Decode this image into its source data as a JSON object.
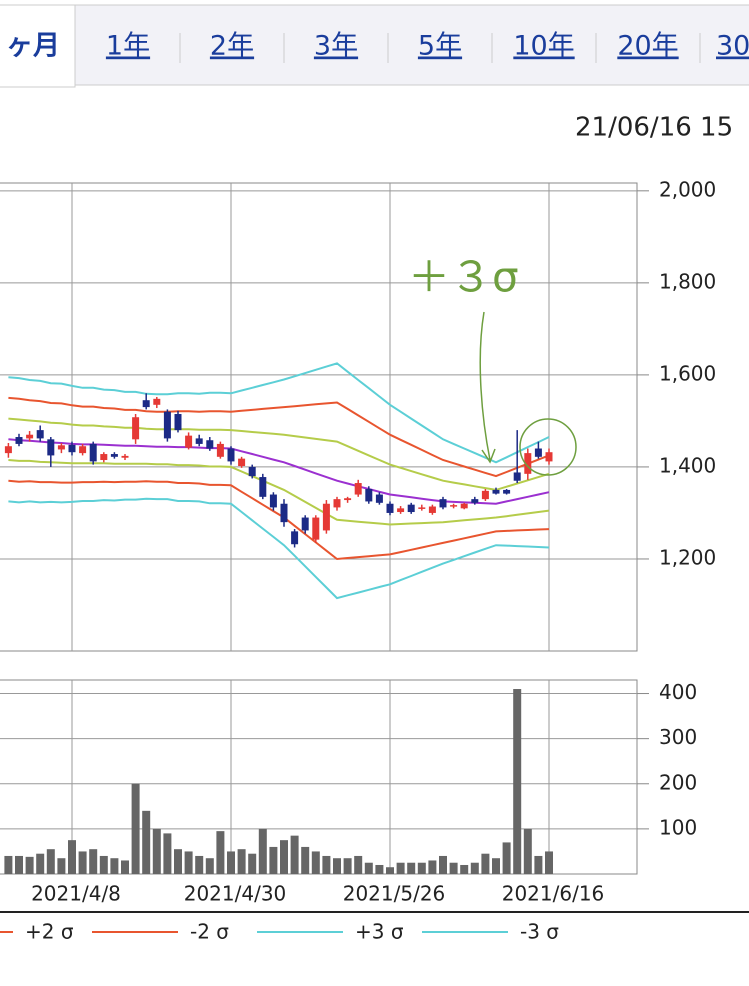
{
  "tabs": [
    "ヶ月",
    "1年",
    "2年",
    "3年",
    "5年",
    "10年",
    "20年",
    "30"
  ],
  "timestamp": "21/06/16 15",
  "chart_data": [
    {
      "type": "candlestick",
      "categories": [
        null,
        null,
        null,
        null,
        null,
        null,
        "2021/4/8",
        null,
        null,
        null,
        null,
        null,
        null,
        null,
        null,
        null,
        null,
        null,
        null,
        null,
        null,
        "2021/4/30",
        null,
        null,
        null,
        null,
        null,
        null,
        null,
        null,
        null,
        null,
        null,
        null,
        null,
        null,
        "2021/5/26",
        null,
        null,
        null,
        null,
        null,
        null,
        null,
        null,
        null,
        null,
        null,
        null,
        null,
        null,
        "2021/6/16"
      ],
      "open": [
        1430,
        1465,
        1462,
        1480,
        1460,
        1438,
        1448,
        1430,
        1450,
        1415,
        1428,
        1420,
        1460,
        1545,
        1535,
        1520,
        1515,
        1442,
        1462,
        1458,
        1422,
        1440,
        1402,
        1400,
        1378,
        1340,
        1320,
        1260,
        1290,
        1242,
        1262,
        1312,
        1328,
        1340,
        1352,
        1340,
        1320,
        1302,
        1318,
        1310,
        1300,
        1330,
        1314,
        1310,
        1330,
        1330,
        1350,
        1350,
        1388,
        1385,
        1440,
        1412
      ],
      "high": [
        1452,
        1472,
        1478,
        1490,
        1465,
        1452,
        1455,
        1450,
        1455,
        1432,
        1432,
        1428,
        1515,
        1560,
        1552,
        1525,
        1522,
        1475,
        1470,
        1465,
        1455,
        1445,
        1422,
        1405,
        1385,
        1345,
        1330,
        1265,
        1295,
        1295,
        1328,
        1335,
        1335,
        1372,
        1358,
        1345,
        1325,
        1315,
        1322,
        1318,
        1318,
        1335,
        1320,
        1322,
        1335,
        1352,
        1355,
        1352,
        1480,
        1440,
        1455,
        1440
      ],
      "low": [
        1420,
        1445,
        1455,
        1455,
        1400,
        1430,
        1425,
        1425,
        1405,
        1410,
        1418,
        1415,
        1450,
        1525,
        1528,
        1455,
        1475,
        1438,
        1445,
        1435,
        1418,
        1405,
        1398,
        1375,
        1330,
        1305,
        1270,
        1225,
        1255,
        1235,
        1255,
        1305,
        1322,
        1335,
        1320,
        1318,
        1295,
        1298,
        1298,
        1305,
        1296,
        1308,
        1310,
        1308,
        1318,
        1326,
        1340,
        1340,
        1365,
        1372,
        1418,
        1405
      ],
      "close": [
        1445,
        1450,
        1470,
        1462,
        1425,
        1447,
        1432,
        1445,
        1412,
        1428,
        1422,
        1424,
        1508,
        1530,
        1548,
        1462,
        1480,
        1468,
        1450,
        1440,
        1450,
        1412,
        1418,
        1380,
        1335,
        1312,
        1280,
        1232,
        1262,
        1290,
        1320,
        1330,
        1332,
        1365,
        1325,
        1322,
        1300,
        1310,
        1302,
        1312,
        1314,
        1312,
        1317,
        1320,
        1322,
        1348,
        1342,
        1342,
        1370,
        1430,
        1422,
        1432
      ],
      "up_color": "#e53935",
      "down_color": "#1c2a86",
      "series": [
        {
          "color": "#9b30d0",
          "values": [
            1460,
            1458,
            1457,
            1455,
            1453,
            1452,
            1450,
            1449,
            1449,
            1448,
            1447,
            1446,
            1446,
            1445,
            1444,
            1444,
            1443,
            1443,
            1442,
            1441,
            1441,
            1440,
            1434,
            1428,
            1422,
            1416,
            1410,
            1402,
            1394,
            1386,
            1378,
            1370,
            1364,
            1358,
            1352,
            1346,
            1340,
            1337,
            1334,
            1331,
            1328,
            1325,
            1324,
            1323,
            1322,
            1321,
            1320,
            1325,
            1330,
            1335,
            1340,
            1345
          ]
        },
        {
          "color": "#b5cc4a",
          "values": [
            1505,
            1503,
            1501,
            1499,
            1496,
            1495,
            1492,
            1490,
            1490,
            1488,
            1487,
            1485,
            1485,
            1483,
            1482,
            1482,
            1482,
            1482,
            1481,
            1481,
            1481,
            1480,
            1478,
            1476,
            1474,
            1472,
            1470,
            1467,
            1464,
            1461,
            1458,
            1455,
            1445,
            1435,
            1425,
            1415,
            1405,
            1398,
            1391,
            1384,
            1377,
            1370,
            1366,
            1362,
            1358,
            1354,
            1350,
            1357,
            1364,
            1371,
            1378,
            1385
          ]
        },
        {
          "color": "#b5cc4a",
          "values": [
            1415,
            1413,
            1413,
            1411,
            1410,
            1409,
            1408,
            1408,
            1408,
            1408,
            1407,
            1407,
            1407,
            1407,
            1406,
            1406,
            1404,
            1404,
            1403,
            1401,
            1401,
            1400,
            1390,
            1380,
            1370,
            1360,
            1350,
            1337,
            1324,
            1311,
            1298,
            1285,
            1283,
            1281,
            1279,
            1277,
            1275,
            1276,
            1277,
            1278,
            1279,
            1280,
            1282,
            1284,
            1286,
            1288,
            1290,
            1293,
            1296,
            1299,
            1302,
            1305
          ]
        },
        {
          "name": "+2 σ",
          "color": "#e8552f",
          "values": [
            1550,
            1548,
            1545,
            1543,
            1539,
            1538,
            1534,
            1531,
            1531,
            1528,
            1527,
            1524,
            1524,
            1521,
            1520,
            1520,
            1521,
            1521,
            1520,
            1521,
            1521,
            1520,
            1522,
            1524,
            1526,
            1528,
            1530,
            1532,
            1534,
            1536,
            1538,
            1540,
            1526,
            1512,
            1498,
            1484,
            1470,
            1459,
            1448,
            1437,
            1426,
            1415,
            1408,
            1401,
            1394,
            1387,
            1380,
            1389,
            1398,
            1407,
            1416,
            1425
          ]
        },
        {
          "name": "-2 σ",
          "color": "#e8552f",
          "values": [
            1370,
            1368,
            1369,
            1367,
            1367,
            1366,
            1366,
            1367,
            1367,
            1368,
            1367,
            1368,
            1368,
            1369,
            1368,
            1368,
            1365,
            1365,
            1364,
            1361,
            1361,
            1360,
            1346,
            1332,
            1318,
            1304,
            1290,
            1272,
            1254,
            1236,
            1218,
            1200,
            1202,
            1204,
            1206,
            1208,
            1210,
            1215,
            1220,
            1225,
            1230,
            1235,
            1240,
            1245,
            1250,
            1255,
            1260,
            1261,
            1262,
            1263,
            1264,
            1265
          ]
        },
        {
          "name": "+3 σ",
          "color": "#5ccfd6",
          "values": [
            1595,
            1593,
            1589,
            1587,
            1582,
            1581,
            1576,
            1572,
            1572,
            1568,
            1567,
            1563,
            1563,
            1559,
            1558,
            1558,
            1560,
            1560,
            1559,
            1561,
            1561,
            1560,
            1566,
            1572,
            1578,
            1584,
            1590,
            1597,
            1604,
            1611,
            1618,
            1625,
            1607,
            1589,
            1571,
            1553,
            1535,
            1520,
            1505,
            1490,
            1475,
            1460,
            1450,
            1440,
            1430,
            1420,
            1410,
            1421,
            1432,
            1443,
            1454,
            1465
          ]
        },
        {
          "name": "-3 σ",
          "color": "#5ccfd6",
          "values": [
            1325,
            1323,
            1325,
            1323,
            1324,
            1323,
            1324,
            1326,
            1326,
            1328,
            1327,
            1329,
            1329,
            1331,
            1330,
            1330,
            1326,
            1326,
            1325,
            1321,
            1321,
            1320,
            1302,
            1284,
            1266,
            1248,
            1230,
            1207,
            1184,
            1161,
            1138,
            1115,
            1121,
            1127,
            1133,
            1139,
            1145,
            1154,
            1163,
            1172,
            1181,
            1190,
            1198,
            1206,
            1214,
            1222,
            1230,
            1229,
            1228,
            1227,
            1226,
            1225
          ]
        }
      ],
      "ylim": [
        1000,
        2017
      ],
      "yticks": [
        {
          "value": 1200,
          "label": "1,200"
        },
        {
          "value": 1400,
          "label": "1,400"
        },
        {
          "value": 1600,
          "label": "1,600"
        },
        {
          "value": 1800,
          "label": "1,800"
        },
        {
          "value": 2000,
          "label": "2,000"
        }
      ],
      "grid": true,
      "annotation": "＋３σ"
    },
    {
      "type": "bar",
      "values": [
        40,
        40,
        38,
        45,
        55,
        35,
        75,
        50,
        55,
        40,
        35,
        30,
        200,
        140,
        100,
        90,
        55,
        50,
        40,
        35,
        95,
        50,
        55,
        45,
        100,
        60,
        75,
        85,
        60,
        50,
        40,
        35,
        35,
        40,
        25,
        20,
        15,
        25,
        25,
        25,
        30,
        40,
        25,
        20,
        25,
        45,
        35,
        70,
        410,
        100,
        40,
        50
      ],
      "color": "#666666",
      "ylim": [
        0,
        430
      ],
      "yticks": [
        100,
        200,
        300,
        400
      ],
      "grid": true
    }
  ]
}
